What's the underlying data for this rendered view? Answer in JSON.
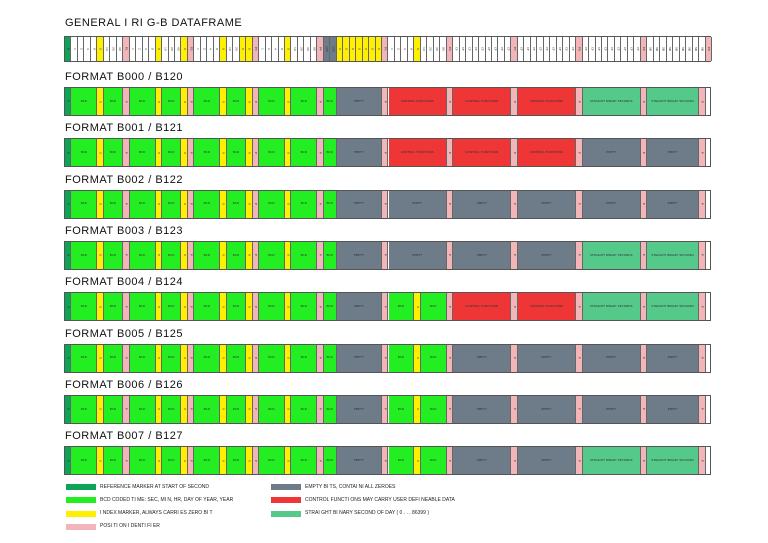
{
  "colors": {
    "ref": "#0fa35a",
    "bcd": "#22ee22",
    "index": "#ffef00",
    "pos": "#f2b6b9",
    "empty": "#6e7b88",
    "ctrl": "#ee3636",
    "sbs": "#55c98a"
  },
  "general": {
    "title": "GENERAL I RI G-B DATAFRAME",
    "bits": [
      "R",
      "1",
      "2",
      "4",
      "8",
      "0",
      "10",
      "20",
      "40",
      "P1",
      "1",
      "2",
      "4",
      "8",
      "0",
      "10",
      "20",
      "40",
      "0",
      "P2",
      "1",
      "2",
      "4",
      "8",
      "0",
      "10",
      "20",
      "0",
      "0",
      "P3",
      "1",
      "2",
      "4",
      "8",
      "0",
      "10",
      "20",
      "40",
      "80",
      "P4",
      "100",
      "200",
      "0",
      "0",
      "0",
      "0",
      "0",
      "0",
      "0",
      "P5",
      "1",
      "2",
      "4",
      "8",
      "0",
      "10",
      "20",
      "40",
      "80",
      "P6",
      "CF",
      "CF",
      "CF",
      "CF",
      "CF",
      "CF",
      "CF",
      "CF",
      "CF",
      "P7",
      "CF",
      "CF",
      "CF",
      "CF",
      "CF",
      "CF",
      "CF",
      "CF",
      "CF",
      "P8",
      "CF",
      "CF",
      "CF",
      "CF",
      "CF",
      "CF",
      "CF",
      "CF",
      "CF",
      "P9",
      "SB",
      "SB",
      "SB",
      "SB",
      "SB",
      "SB",
      "SB",
      "SB",
      "SB",
      "P0"
    ]
  },
  "formats": [
    {
      "title": "FORMAT B000 /  B120",
      "segments": [
        "ref",
        "bcd4",
        "idx",
        "bcd3",
        "pos",
        "bcd4",
        "idx",
        "bcd3",
        "idx",
        "pos",
        "bcd4",
        "idx",
        "bcd3",
        "idx",
        "pos",
        "bcd4",
        "idx",
        "bcd4",
        "pos",
        "bcd2",
        "emp7",
        "pos",
        "ctr9",
        "pos",
        "ctr9",
        "pos",
        "ctr9",
        "pos",
        "sbs9",
        "pos",
        "sbs8",
        "pos"
      ]
    },
    {
      "title": "FORMAT B001 /  B121",
      "segments": [
        "ref",
        "bcd4",
        "idx",
        "bcd3",
        "pos",
        "bcd4",
        "idx",
        "bcd3",
        "idx",
        "pos",
        "bcd4",
        "idx",
        "bcd3",
        "idx",
        "pos",
        "bcd4",
        "idx",
        "bcd4",
        "pos",
        "bcd2",
        "emp7",
        "pos",
        "ctr9",
        "pos",
        "ctr9",
        "pos",
        "ctr9",
        "pos",
        "emp9",
        "pos",
        "emp8",
        "pos"
      ]
    },
    {
      "title": "FORMAT B002 /  B122",
      "segments": [
        "ref",
        "bcd4",
        "idx",
        "bcd3",
        "pos",
        "bcd4",
        "idx",
        "bcd3",
        "idx",
        "pos",
        "bcd4",
        "idx",
        "bcd3",
        "idx",
        "pos",
        "bcd4",
        "idx",
        "bcd4",
        "pos",
        "bcd2",
        "emp7",
        "pos",
        "emp9",
        "pos",
        "emp9",
        "pos",
        "emp9",
        "pos",
        "emp9",
        "pos",
        "emp8",
        "pos"
      ]
    },
    {
      "title": "FORMAT B003 /  B123",
      "segments": [
        "ref",
        "bcd4",
        "idx",
        "bcd3",
        "pos",
        "bcd4",
        "idx",
        "bcd3",
        "idx",
        "pos",
        "bcd4",
        "idx",
        "bcd3",
        "idx",
        "pos",
        "bcd4",
        "idx",
        "bcd4",
        "pos",
        "bcd2",
        "emp7",
        "pos",
        "emp9",
        "pos",
        "emp9",
        "pos",
        "emp9",
        "pos",
        "sbs9",
        "pos",
        "sbs8",
        "pos"
      ]
    },
    {
      "title": "FORMAT B004 /  B124",
      "segments": [
        "ref",
        "bcd4",
        "idx",
        "bcd3",
        "pos",
        "bcd4",
        "idx",
        "bcd3",
        "idx",
        "pos",
        "bcd4",
        "idx",
        "bcd3",
        "idx",
        "pos",
        "bcd4",
        "idx",
        "bcd4",
        "pos",
        "bcd2",
        "emp7",
        "pos",
        "bcd4",
        "idx",
        "bcd4",
        "pos",
        "ctr9",
        "pos",
        "ctr9",
        "pos",
        "sbs9",
        "pos",
        "sbs8",
        "pos"
      ]
    },
    {
      "title": "FORMAT B005 /  B125",
      "segments": [
        "ref",
        "bcd4",
        "idx",
        "bcd3",
        "pos",
        "bcd4",
        "idx",
        "bcd3",
        "idx",
        "pos",
        "bcd4",
        "idx",
        "bcd3",
        "idx",
        "pos",
        "bcd4",
        "idx",
        "bcd4",
        "pos",
        "bcd2",
        "emp7",
        "pos",
        "bcd4",
        "idx",
        "bcd4",
        "pos",
        "emp9",
        "pos",
        "emp9",
        "pos",
        "emp9",
        "pos",
        "emp8",
        "pos"
      ]
    },
    {
      "title": "FORMAT B006 /  B126",
      "segments": [
        "ref",
        "bcd4",
        "idx",
        "bcd3",
        "pos",
        "bcd4",
        "idx",
        "bcd3",
        "idx",
        "pos",
        "bcd4",
        "idx",
        "bcd3",
        "idx",
        "pos",
        "bcd4",
        "idx",
        "bcd4",
        "pos",
        "bcd2",
        "emp7",
        "pos",
        "bcd4",
        "idx",
        "bcd4",
        "pos",
        "emp9",
        "pos",
        "emp9",
        "pos",
        "emp9",
        "pos",
        "emp8",
        "pos"
      ]
    },
    {
      "title": "FORMAT B007 /  B127",
      "segments": [
        "ref",
        "bcd4",
        "idx",
        "bcd3",
        "pos",
        "bcd4",
        "idx",
        "bcd3",
        "idx",
        "pos",
        "bcd4",
        "idx",
        "bcd3",
        "idx",
        "pos",
        "bcd4",
        "idx",
        "bcd4",
        "pos",
        "bcd2",
        "emp7",
        "pos",
        "bcd4",
        "idx",
        "bcd4",
        "pos",
        "emp9",
        "pos",
        "emp9",
        "pos",
        "sbs9",
        "pos",
        "sbs8",
        "pos"
      ]
    }
  ],
  "segment_labels": {
    "ref": "R",
    "idx": "0",
    "pos": "P",
    "bcd": "BCD",
    "emp": "EMPTY",
    "ctr": "CONTROL FUNCTIONS",
    "sbs": "STRAIGHT BINARY SECONDS"
  },
  "legend": [
    {
      "key": "ref",
      "text": "REFERENCE MARKER AT START OF SECOND"
    },
    {
      "key": "bcd",
      "text": "BCD CODED TI ME:  SEC,  MI N,  HR,  DAY OF YEAR,  YEAR"
    },
    {
      "key": "index",
      "text": "I NDEX MARKER,  ALWAYS CARRI ES ZERO BI T"
    },
    {
      "key": "pos",
      "text": "POSI TI ON I DENTI FI ER"
    },
    {
      "key": "empty",
      "text": "EMPTY BI TS,  CONTAI NI ALL ZEROES"
    },
    {
      "key": "ctrl",
      "text": "CONTROL FUNCTI ONS MAY CARRY USER DEFI NEABLE DATA"
    },
    {
      "key": "sbs",
      "text": "STRAI GHT BI NARY SECOND OF DAY ( 0 . . . 86399 )"
    }
  ]
}
